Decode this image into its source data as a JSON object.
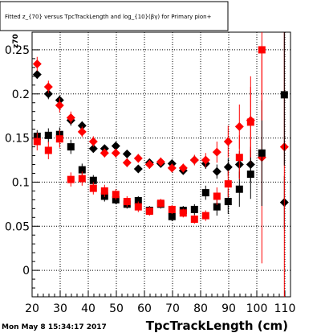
{
  "title": "Fitted  z_{70}  versus  TpcTrackLength and log_{10}(βγ) for Primary pion+",
  "y_axis_side_label": "z70",
  "timestamp": "Mon May  8 15:34:17 2017",
  "chart_data": {
    "type": "scatter",
    "title": "Fitted  z_{70}  versus  TpcTrackLength and log_{10}(βγ) for Primary pion+",
    "xlabel": "TpcTrackLength (cm)",
    "ylabel": "",
    "xlim": [
      20,
      112
    ],
    "ylim": [
      -0.03,
      0.27
    ],
    "grid": true,
    "x_ticks": [
      20,
      30,
      40,
      50,
      60,
      70,
      80,
      90,
      100,
      110
    ],
    "y_ticks": [
      0,
      0.05,
      0.1,
      0.15,
      0.2,
      0.25
    ],
    "y_tick_labels": [
      "0",
      "0.05",
      "0.1",
      "0.15",
      "0.2",
      "0.25"
    ],
    "series": [
      {
        "marker": "diamond",
        "color": "#000000",
        "points": [
          [
            21.8,
            0.222,
            0.005
          ],
          [
            25.8,
            0.2,
            0.006
          ],
          [
            29.8,
            0.193,
            0.005
          ],
          [
            33.8,
            0.17,
            0.006
          ],
          [
            37.8,
            0.164,
            0.005
          ],
          [
            41.8,
            0.138,
            0.004
          ],
          [
            45.8,
            0.138,
            0.004
          ],
          [
            49.8,
            0.141,
            0.004
          ],
          [
            53.8,
            0.132,
            0.004
          ],
          [
            57.8,
            0.115,
            0.004
          ],
          [
            61.8,
            0.122,
            0.004
          ],
          [
            65.8,
            0.121,
            0.004
          ],
          [
            69.8,
            0.121,
            0.004
          ],
          [
            73.8,
            0.113,
            0.004
          ],
          [
            77.8,
            0.125,
            0.005
          ],
          [
            81.8,
            0.121,
            0.006
          ],
          [
            85.8,
            0.112,
            0.008
          ],
          [
            89.8,
            0.117,
            0.01
          ],
          [
            93.8,
            0.12,
            0.015
          ],
          [
            97.8,
            0.12,
            0.02
          ],
          [
            109.8,
            0.077,
            0.03
          ]
        ]
      },
      {
        "marker": "diamond",
        "color": "#ff0000",
        "points": [
          [
            21.8,
            0.234,
            0.008
          ],
          [
            25.8,
            0.208,
            0.007
          ],
          [
            29.8,
            0.187,
            0.008
          ],
          [
            33.8,
            0.173,
            0.007
          ],
          [
            37.8,
            0.157,
            0.006
          ],
          [
            41.8,
            0.146,
            0.006
          ],
          [
            45.8,
            0.133,
            0.005
          ],
          [
            49.8,
            0.133,
            0.005
          ],
          [
            53.8,
            0.122,
            0.005
          ],
          [
            57.8,
            0.127,
            0.005
          ],
          [
            61.8,
            0.12,
            0.005
          ],
          [
            65.8,
            0.123,
            0.005
          ],
          [
            69.8,
            0.116,
            0.005
          ],
          [
            73.8,
            0.116,
            0.005
          ],
          [
            77.8,
            0.125,
            0.006
          ],
          [
            81.8,
            0.125,
            0.008
          ],
          [
            85.8,
            0.134,
            0.012
          ],
          [
            89.8,
            0.146,
            0.018
          ],
          [
            93.8,
            0.163,
            0.025
          ],
          [
            97.8,
            0.17,
            0.05
          ],
          [
            101.8,
            0.128,
            0.12
          ],
          [
            109.8,
            0.14,
            0.18
          ]
        ]
      },
      {
        "marker": "square",
        "color": "#000000",
        "points": [
          [
            21.8,
            0.152,
            0.007
          ],
          [
            25.8,
            0.153,
            0.008
          ],
          [
            29.8,
            0.154,
            0.008
          ],
          [
            33.8,
            0.14,
            0.008
          ],
          [
            37.8,
            0.114,
            0.007
          ],
          [
            41.8,
            0.102,
            0.006
          ],
          [
            45.8,
            0.084,
            0.006
          ],
          [
            49.8,
            0.08,
            0.005
          ],
          [
            53.8,
            0.075,
            0.005
          ],
          [
            57.8,
            0.079,
            0.005
          ],
          [
            61.8,
            0.068,
            0.005
          ],
          [
            65.8,
            0.075,
            0.005
          ],
          [
            69.8,
            0.061,
            0.005
          ],
          [
            73.8,
            0.068,
            0.005
          ],
          [
            77.8,
            0.069,
            0.006
          ],
          [
            81.8,
            0.088,
            0.008
          ],
          [
            85.8,
            0.072,
            0.01
          ],
          [
            89.8,
            0.078,
            0.014
          ],
          [
            93.8,
            0.092,
            0.02
          ],
          [
            97.8,
            0.109,
            0.028
          ],
          [
            101.8,
            0.133,
            0.06
          ],
          [
            109.8,
            0.199,
            0.08
          ]
        ]
      },
      {
        "marker": "square",
        "color": "#ff0000",
        "points": [
          [
            21.8,
            0.146,
            0.01
          ],
          [
            25.8,
            0.136,
            0.01
          ],
          [
            29.8,
            0.149,
            0.01
          ],
          [
            33.8,
            0.103,
            0.008
          ],
          [
            37.8,
            0.104,
            0.008
          ],
          [
            41.8,
            0.093,
            0.007
          ],
          [
            45.8,
            0.09,
            0.007
          ],
          [
            49.8,
            0.086,
            0.006
          ],
          [
            53.8,
            0.078,
            0.006
          ],
          [
            57.8,
            0.072,
            0.006
          ],
          [
            61.8,
            0.067,
            0.005
          ],
          [
            65.8,
            0.076,
            0.005
          ],
          [
            69.8,
            0.069,
            0.005
          ],
          [
            73.8,
            0.065,
            0.005
          ],
          [
            77.8,
            0.058,
            0.005
          ],
          [
            81.8,
            0.062,
            0.006
          ],
          [
            85.8,
            0.084,
            0.01
          ],
          [
            89.8,
            0.098,
            0.015
          ],
          [
            93.8,
            0.128,
            0.025
          ],
          [
            97.8,
            0.168,
            0.04
          ],
          [
            101.8,
            0.25,
            0.08
          ]
        ]
      }
    ]
  }
}
